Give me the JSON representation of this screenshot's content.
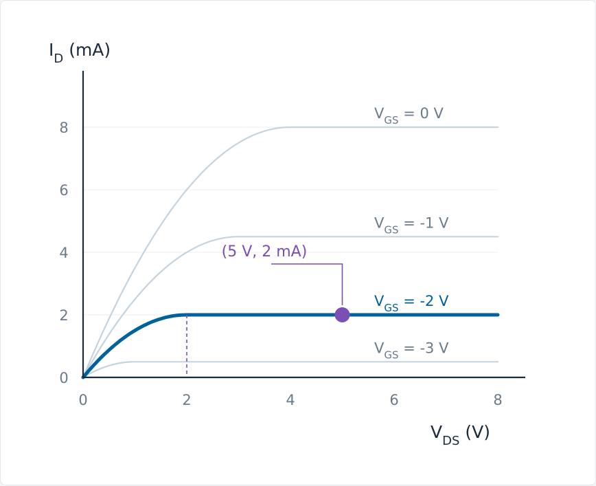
{
  "chart_data": {
    "type": "line",
    "ylabel": {
      "main": "I",
      "sub": "D",
      "rest": " (mA)"
    },
    "xlabel": {
      "main": "V",
      "sub": "DS",
      "rest": " (V)"
    },
    "xlim": [
      0,
      8
    ],
    "ylim": [
      0,
      8
    ],
    "x_ticks": [
      0,
      2,
      4,
      6,
      8
    ],
    "y_ticks": [
      0,
      2,
      4,
      6,
      8
    ],
    "grid": true,
    "series": [
      {
        "main": "V",
        "sub": "GS",
        "rest": " = 0 V",
        "idss": 8,
        "vp": 4,
        "highlight": false
      },
      {
        "main": "V",
        "sub": "GS",
        "rest": " = -1 V",
        "idss": 4.5,
        "vp": 3,
        "highlight": false
      },
      {
        "main": "V",
        "sub": "GS",
        "rest": " = -2 V",
        "idss": 2,
        "vp": 2,
        "highlight": true
      },
      {
        "main": "V",
        "sub": "GS",
        "rest": " = -3 V",
        "idss": 0.5,
        "vp": 1,
        "highlight": false
      }
    ],
    "annotation": {
      "x": 5,
      "y": 2,
      "label": "(5 V, 2 mA)"
    },
    "saturation_marker_x": 2,
    "colors": {
      "axis": "#1b2a3a",
      "tick_text": "#6b7a8c",
      "curve": "#c5d3df",
      "highlight": "#00629b",
      "annotation": "#7b4fb3",
      "grid": "#e9edf1"
    }
  }
}
